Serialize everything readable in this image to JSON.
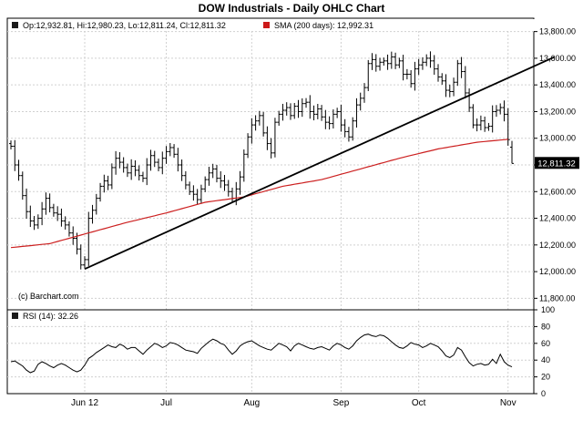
{
  "chart_data": [
    {
      "type": "ohlc",
      "title": "DOW Industrials - Daily OHLC Chart",
      "legend": {
        "ohlc_label": "Op:12,932.81, Hi:12,980.23, Lo:12,811.24, Cl:12,811.32",
        "sma_label": "SMA (200 days): 12,992.31"
      },
      "watermark": "(c) Barchart.com",
      "last_value_label": "12,811.32",
      "ylim": [
        11700,
        13900
      ],
      "yticks": [
        11800,
        12000,
        12200,
        12400,
        12600,
        12800,
        13000,
        13200,
        13400,
        13600,
        13800
      ],
      "ytick_labels": [
        "11,800.00",
        "12,000.00",
        "12,200.00",
        "12,400.00",
        "12,600.00",
        "12,800.00",
        "13,000.00",
        "13,200.00",
        "13,400.00",
        "13,600.00",
        "13,800.00"
      ],
      "x_labels": [
        {
          "bar": 19,
          "label": "Jun 12"
        },
        {
          "bar": 40,
          "label": "Jul"
        },
        {
          "bar": 62,
          "label": "Aug"
        },
        {
          "bar": 85,
          "label": "Sep"
        },
        {
          "bar": 105,
          "label": "Oct"
        },
        {
          "bar": 128,
          "label": "Nov"
        }
      ],
      "trendline": {
        "from": {
          "bar": 19,
          "value": 12020
        },
        "to": {
          "bar": 140,
          "value": 13610
        }
      },
      "series": [
        {
          "name": "Price",
          "closes": [
            12940,
            12800,
            12720,
            12570,
            12450,
            12380,
            12350,
            12400,
            12470,
            12550,
            12480,
            12440,
            12430,
            12380,
            12350,
            12290,
            12250,
            12170,
            12050,
            12090,
            12400,
            12460,
            12550,
            12640,
            12680,
            12650,
            12780,
            12850,
            12820,
            12780,
            12740,
            12790,
            12760,
            12720,
            12700,
            12800,
            12870,
            12820,
            12780,
            12850,
            12900,
            12930,
            12880,
            12800,
            12720,
            12650,
            12600,
            12580,
            12540,
            12620,
            12690,
            12740,
            12770,
            12700,
            12680,
            12650,
            12600,
            12550,
            12620,
            12710,
            12880,
            13010,
            13100,
            13130,
            13170,
            13040,
            12960,
            12890,
            13120,
            13180,
            13210,
            13230,
            13170,
            13240,
            13200,
            13260,
            13270,
            13200,
            13180,
            13220,
            13160,
            13120,
            13110,
            13180,
            13200,
            13100,
            13050,
            13010,
            13130,
            13250,
            13300,
            13380,
            13560,
            13590,
            13540,
            13570,
            13580,
            13560,
            13610,
            13550,
            13580,
            13480,
            13480,
            13410,
            13520,
            13550,
            13570,
            13600,
            13580,
            13520,
            13460,
            13430,
            13360,
            13350,
            13420,
            13560,
            13500,
            13340,
            13230,
            13100,
            13100,
            13130,
            13080,
            13090,
            13200,
            13210,
            13230,
            13180,
            12990,
            12810
          ],
          "open_last": 12932.81,
          "high_last": 12980.23,
          "low_last": 12811.24,
          "close_last": 12811.32
        },
        {
          "name": "SMA (200 days)",
          "anchors": [
            [
              0,
              12180
            ],
            [
              10,
              12210
            ],
            [
              20,
              12290
            ],
            [
              30,
              12370
            ],
            [
              40,
              12440
            ],
            [
              50,
              12520
            ],
            [
              60,
              12560
            ],
            [
              70,
              12640
            ],
            [
              80,
              12690
            ],
            [
              90,
              12770
            ],
            [
              100,
              12850
            ],
            [
              110,
              12920
            ],
            [
              120,
              12970
            ],
            [
              128,
              12992
            ]
          ]
        }
      ]
    },
    {
      "type": "line",
      "legend": "RSI (14): 32.26",
      "ylim": [
        0,
        100
      ],
      "yticks": [
        0,
        20,
        40,
        60,
        80,
        100
      ],
      "ytick_labels": [
        "0",
        "20",
        "40",
        "60",
        "80",
        "100"
      ],
      "series": [
        {
          "name": "RSI (14)",
          "values": [
            38,
            39,
            36,
            33,
            28,
            25,
            27,
            35,
            38,
            36,
            33,
            31,
            34,
            36,
            34,
            31,
            28,
            26,
            28,
            34,
            42,
            45,
            49,
            52,
            55,
            58,
            56,
            55,
            59,
            57,
            53,
            55,
            55,
            51,
            47,
            52,
            56,
            60,
            58,
            55,
            57,
            61,
            60,
            58,
            55,
            52,
            51,
            50,
            48,
            54,
            58,
            62,
            65,
            63,
            60,
            58,
            52,
            47,
            51,
            57,
            60,
            62,
            63,
            60,
            57,
            55,
            53,
            52,
            56,
            60,
            58,
            56,
            51,
            57,
            60,
            58,
            56,
            54,
            53,
            55,
            56,
            54,
            52,
            57,
            60,
            58,
            55,
            53,
            57,
            63,
            67,
            70,
            71,
            69,
            68,
            70,
            69,
            66,
            62,
            58,
            55,
            54,
            57,
            61,
            59,
            58,
            55,
            57,
            60,
            58,
            56,
            51,
            45,
            43,
            46,
            55,
            52,
            44,
            37,
            33,
            35,
            36,
            34,
            35,
            41,
            36,
            47,
            38,
            34,
            32
          ]
        }
      ]
    }
  ]
}
